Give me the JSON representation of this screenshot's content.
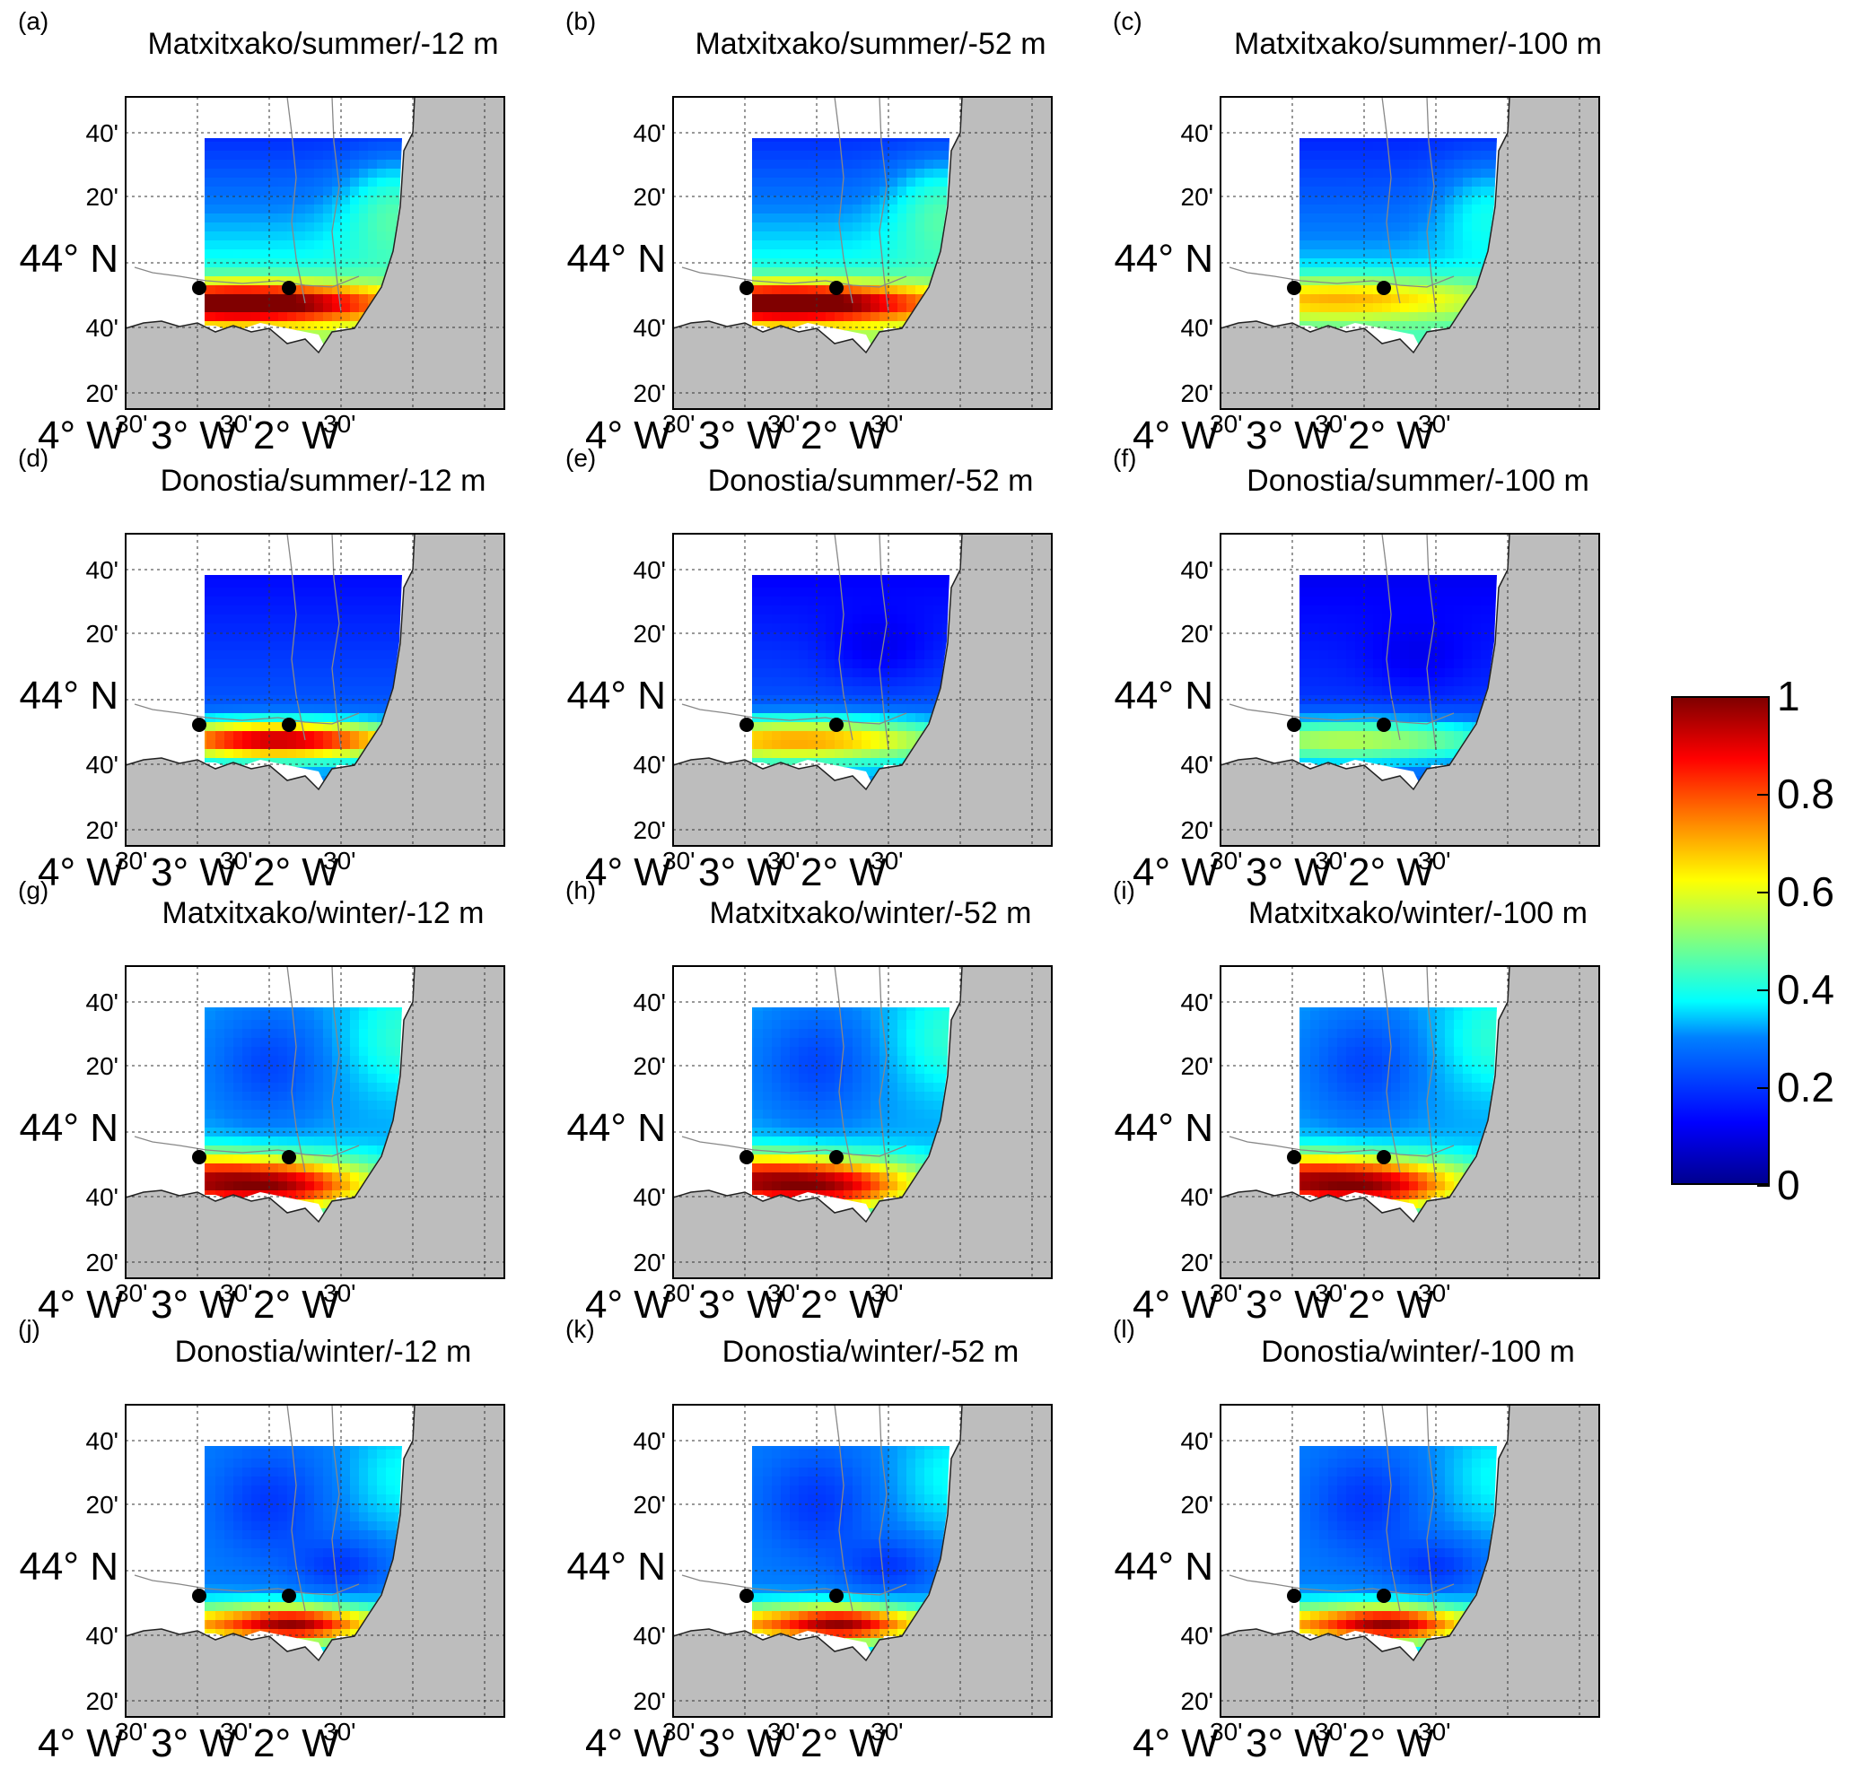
{
  "panels": [
    {
      "letter": "(a)",
      "title": "Matxitxako/summer/-12 m",
      "regime": "ms"
    },
    {
      "letter": "(b)",
      "title": "Matxitxako/summer/-52 m",
      "regime": "ms"
    },
    {
      "letter": "(c)",
      "title": "Matxitxako/summer/-100 m",
      "regime": "ms_deep"
    },
    {
      "letter": "(d)",
      "title": "Donostia/summer/-12 m",
      "regime": "ds"
    },
    {
      "letter": "(e)",
      "title": "Donostia/summer/-52 m",
      "regime": "ds_mid"
    },
    {
      "letter": "(f)",
      "title": "Donostia/summer/-100 m",
      "regime": "ds_deep"
    },
    {
      "letter": "(g)",
      "title": "Matxitxako/winter/-12 m",
      "regime": "mw"
    },
    {
      "letter": "(h)",
      "title": "Matxitxako/winter/-52 m",
      "regime": "mw"
    },
    {
      "letter": "(i)",
      "title": "Matxitxako/winter/-100 m",
      "regime": "mw"
    },
    {
      "letter": "(j)",
      "title": "Donostia/winter/-12 m",
      "regime": "dw"
    },
    {
      "letter": "(k)",
      "title": "Donostia/winter/-52 m",
      "regime": "dw"
    },
    {
      "letter": "(l)",
      "title": "Donostia/winter/-100 m",
      "regime": "dw"
    }
  ],
  "axes": {
    "lat_tick_labels": [
      "40'",
      "20'",
      "44° N",
      "40'",
      "20'"
    ],
    "lon_tick_labels": [
      "4° W",
      "30'",
      "3° W",
      "30'",
      "2° W",
      "30'"
    ]
  },
  "colorbar": {
    "tick_labels": [
      "1",
      "0.8",
      "0.6",
      "0.4",
      "0.2",
      "0"
    ],
    "tick_values": [
      1,
      0.8,
      0.6,
      0.4,
      0.2,
      0
    ],
    "colormap": "jet"
  },
  "colors": {
    "land": "#bdbdbd",
    "grid": "#333333",
    "station_marker": "#000000"
  },
  "legend": {
    "placement": "right"
  }
}
